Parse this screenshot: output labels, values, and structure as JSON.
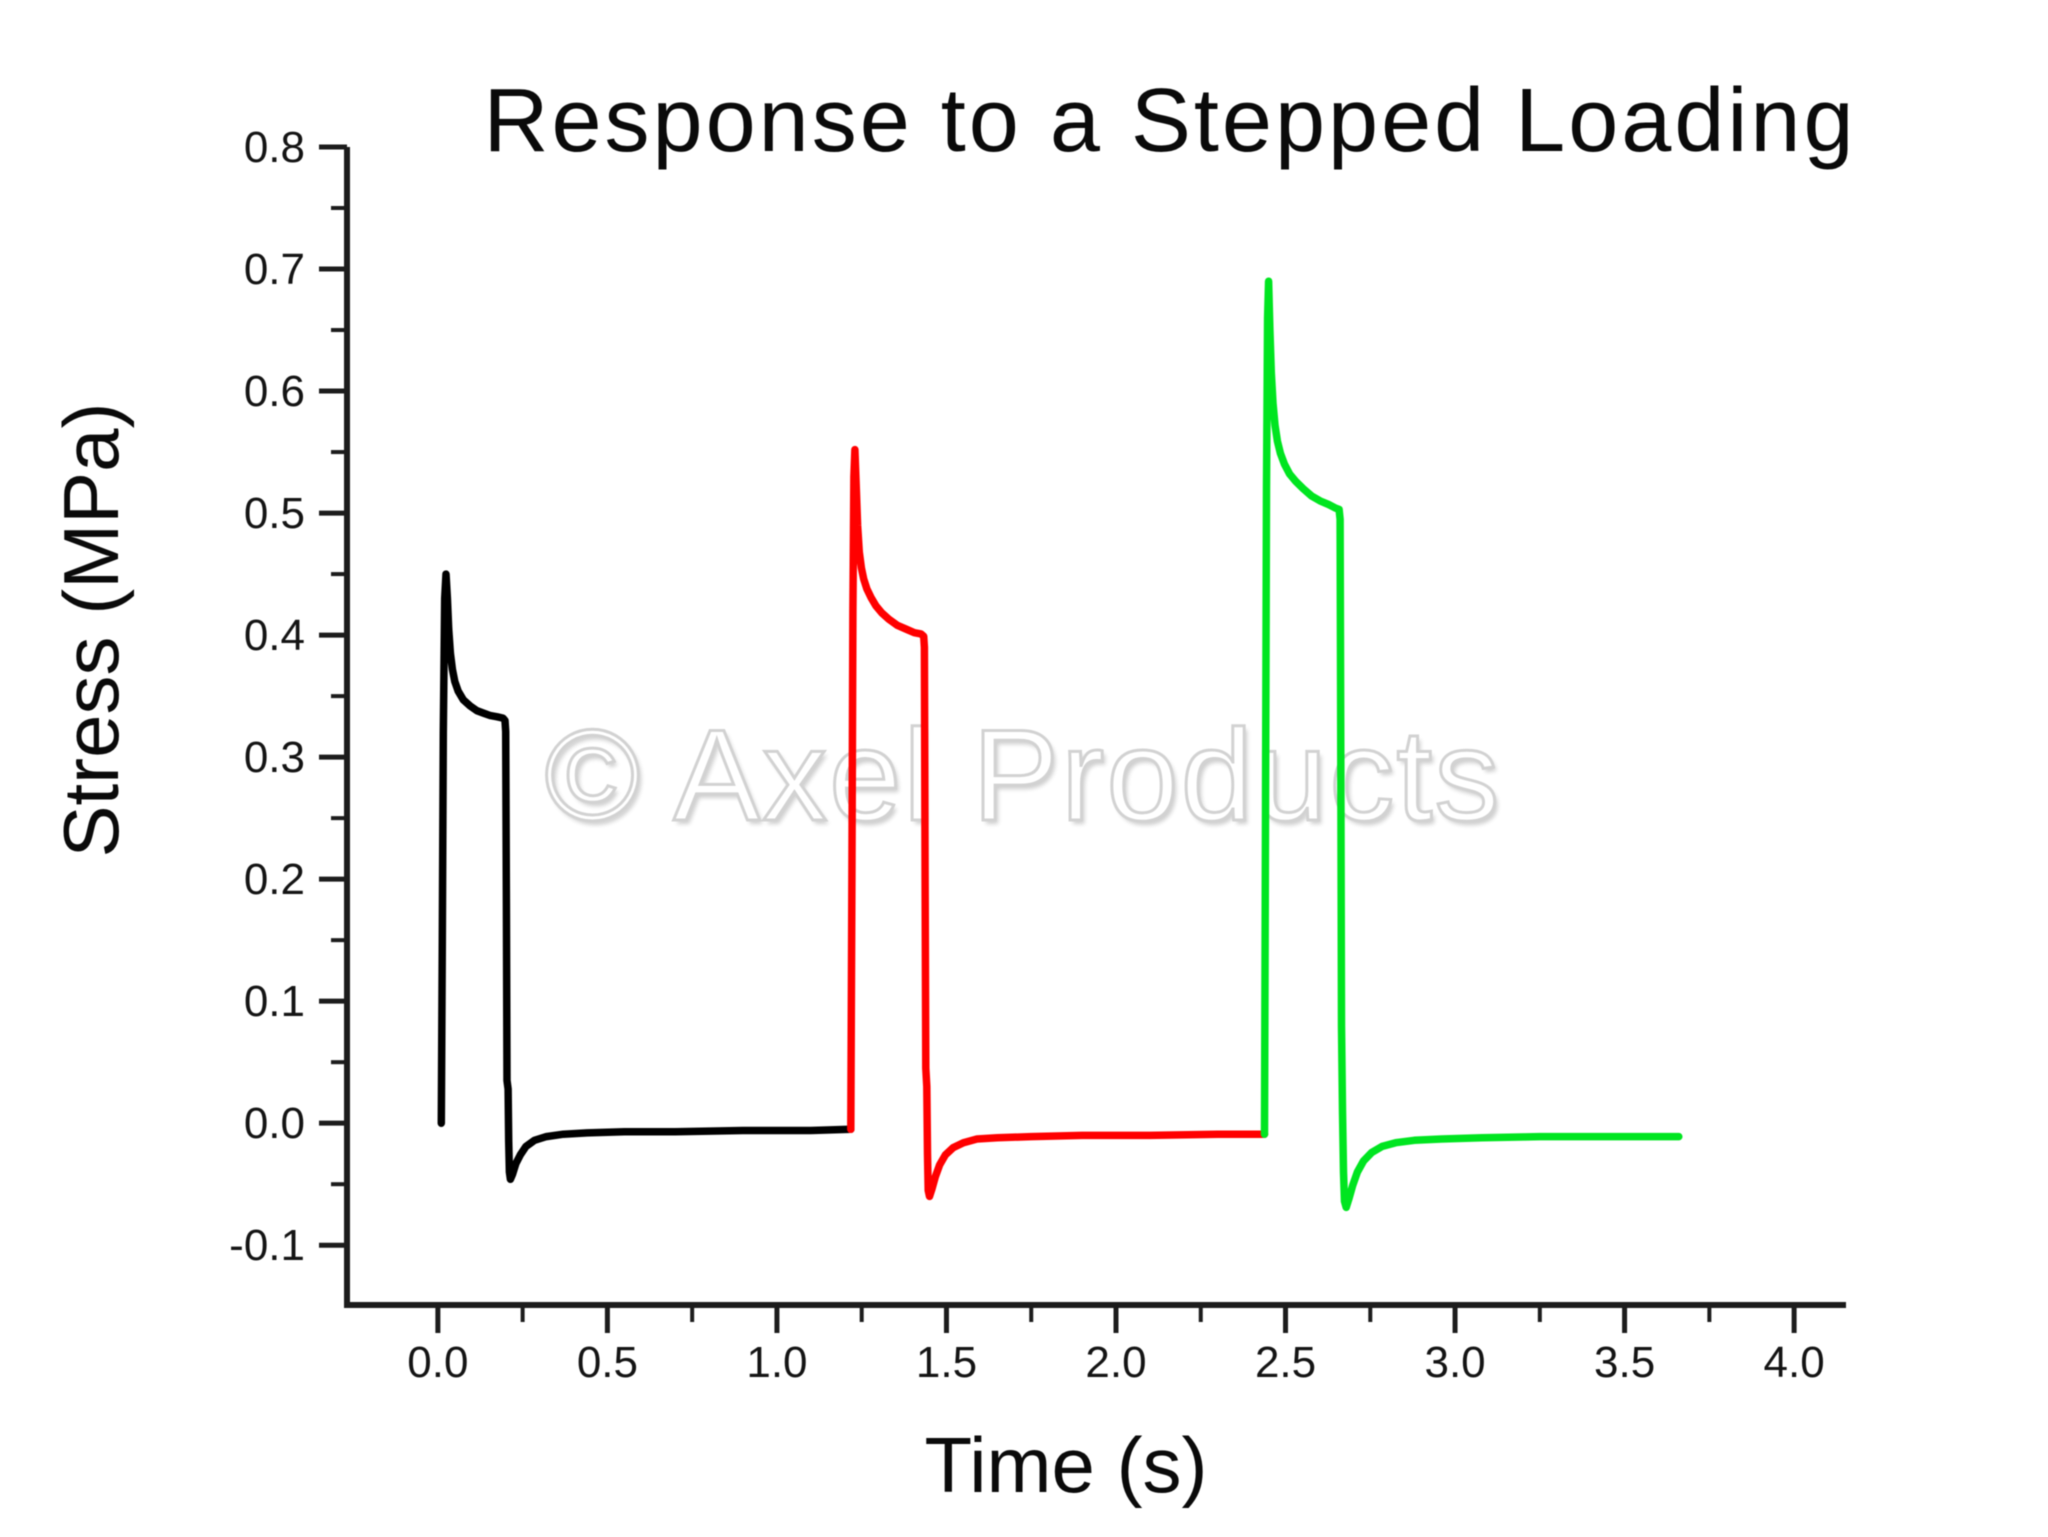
{
  "page": {
    "background": "#ffffff"
  },
  "watermark": {
    "text": "© Axel Products",
    "color": "#d2d2d2"
  },
  "chart_data": {
    "type": "line",
    "title": "Response to a Stepped Loading",
    "xlabel": "Time (s)",
    "ylabel": "Stress (MPa)",
    "xlim": [
      -0.268,
      4.153
    ],
    "ylim": [
      -0.149,
      0.8
    ],
    "grid": false,
    "legend": "none",
    "axis_color": "#1c1c1c",
    "x_ticks": {
      "major": [
        {
          "value": 0.0,
          "label": "0.0"
        },
        {
          "value": 0.5,
          "label": "0.5"
        },
        {
          "value": 1.0,
          "label": "1.0"
        },
        {
          "value": 1.5,
          "label": "1.5"
        },
        {
          "value": 2.0,
          "label": "2.0"
        },
        {
          "value": 2.5,
          "label": "2.5"
        },
        {
          "value": 3.0,
          "label": "3.0"
        },
        {
          "value": 3.5,
          "label": "3.5"
        },
        {
          "value": 4.0,
          "label": "4.0"
        }
      ],
      "minor_values": [
        0.25,
        0.75,
        1.25,
        1.75,
        2.25,
        2.75,
        3.25,
        3.75
      ]
    },
    "y_ticks": {
      "major": [
        {
          "value": 0.8,
          "label": "0.8"
        },
        {
          "value": 0.7,
          "label": "0.7"
        },
        {
          "value": 0.6,
          "label": "0.6"
        },
        {
          "value": 0.5,
          "label": "0.5"
        },
        {
          "value": 0.4,
          "label": "0.4"
        },
        {
          "value": 0.3,
          "label": "0.3"
        },
        {
          "value": 0.2,
          "label": "0.2"
        },
        {
          "value": 0.1,
          "label": "0.1"
        },
        {
          "value": 0.0,
          "label": "0.0"
        },
        {
          "value": -0.1,
          "label": "-0.1"
        }
      ],
      "minor_values": [
        0.75,
        0.65,
        0.55,
        0.45,
        0.35,
        0.25,
        0.15,
        0.05,
        -0.05
      ]
    },
    "series": [
      {
        "name": "pulse-1-black",
        "color": "#000000",
        "peak": 0.45,
        "settle": 0.33,
        "undershoot": -0.046,
        "points": [
          [
            0.01,
            0.0
          ],
          [
            0.013,
            0.15
          ],
          [
            0.016,
            0.32
          ],
          [
            0.02,
            0.43
          ],
          [
            0.024,
            0.45
          ],
          [
            0.028,
            0.43
          ],
          [
            0.032,
            0.405
          ],
          [
            0.037,
            0.385
          ],
          [
            0.043,
            0.372
          ],
          [
            0.05,
            0.362
          ],
          [
            0.06,
            0.354
          ],
          [
            0.075,
            0.347
          ],
          [
            0.095,
            0.342
          ],
          [
            0.115,
            0.338
          ],
          [
            0.135,
            0.336
          ],
          [
            0.155,
            0.334
          ],
          [
            0.175,
            0.333
          ],
          [
            0.192,
            0.332
          ],
          [
            0.198,
            0.33
          ],
          [
            0.2,
            0.321
          ],
          [
            0.202,
            0.18
          ],
          [
            0.204,
            0.035
          ],
          [
            0.207,
            0.028
          ],
          [
            0.209,
            -0.015
          ],
          [
            0.211,
            -0.04
          ],
          [
            0.214,
            -0.046
          ],
          [
            0.22,
            -0.042
          ],
          [
            0.23,
            -0.033
          ],
          [
            0.243,
            -0.026
          ],
          [
            0.26,
            -0.019
          ],
          [
            0.285,
            -0.014
          ],
          [
            0.32,
            -0.011
          ],
          [
            0.37,
            -0.009
          ],
          [
            0.44,
            -0.008
          ],
          [
            0.55,
            -0.007
          ],
          [
            0.7,
            -0.007
          ],
          [
            0.9,
            -0.006
          ],
          [
            1.1,
            -0.006
          ],
          [
            1.218,
            -0.005
          ]
        ]
      },
      {
        "name": "pulse-2-red",
        "color": "#ff0000",
        "peak": 0.55,
        "settle": 0.4,
        "undershoot": -0.06,
        "points": [
          [
            1.218,
            -0.005
          ],
          [
            1.221,
            0.2
          ],
          [
            1.224,
            0.42
          ],
          [
            1.227,
            0.53
          ],
          [
            1.23,
            0.552
          ],
          [
            1.234,
            0.52
          ],
          [
            1.238,
            0.49
          ],
          [
            1.243,
            0.468
          ],
          [
            1.249,
            0.455
          ],
          [
            1.256,
            0.446
          ],
          [
            1.265,
            0.438
          ],
          [
            1.277,
            0.431
          ],
          [
            1.292,
            0.424
          ],
          [
            1.31,
            0.418
          ],
          [
            1.33,
            0.413
          ],
          [
            1.355,
            0.408
          ],
          [
            1.38,
            0.405
          ],
          [
            1.405,
            0.402
          ],
          [
            1.425,
            0.401
          ],
          [
            1.433,
            0.399
          ],
          [
            1.435,
            0.39
          ],
          [
            1.437,
            0.2
          ],
          [
            1.439,
            0.045
          ],
          [
            1.442,
            0.03
          ],
          [
            1.444,
            -0.025
          ],
          [
            1.446,
            -0.055
          ],
          [
            1.45,
            -0.06
          ],
          [
            1.457,
            -0.054
          ],
          [
            1.467,
            -0.044
          ],
          [
            1.48,
            -0.034
          ],
          [
            1.497,
            -0.026
          ],
          [
            1.52,
            -0.02
          ],
          [
            1.55,
            -0.016
          ],
          [
            1.59,
            -0.013
          ],
          [
            1.65,
            -0.012
          ],
          [
            1.75,
            -0.011
          ],
          [
            1.9,
            -0.01
          ],
          [
            2.1,
            -0.01
          ],
          [
            2.3,
            -0.009
          ],
          [
            2.438,
            -0.009
          ]
        ]
      },
      {
        "name": "pulse-3-green",
        "color": "#00e520",
        "peak": 0.69,
        "settle": 0.5,
        "undershoot": -0.069,
        "points": [
          [
            2.438,
            -0.009
          ],
          [
            2.441,
            0.25
          ],
          [
            2.444,
            0.52
          ],
          [
            2.447,
            0.66
          ],
          [
            2.45,
            0.69
          ],
          [
            2.454,
            0.65
          ],
          [
            2.458,
            0.615
          ],
          [
            2.463,
            0.59
          ],
          [
            2.469,
            0.572
          ],
          [
            2.476,
            0.559
          ],
          [
            2.485,
            0.549
          ],
          [
            2.497,
            0.54
          ],
          [
            2.512,
            0.532
          ],
          [
            2.53,
            0.526
          ],
          [
            2.552,
            0.52
          ],
          [
            2.577,
            0.514
          ],
          [
            2.602,
            0.51
          ],
          [
            2.627,
            0.507
          ],
          [
            2.648,
            0.504
          ],
          [
            2.658,
            0.503
          ],
          [
            2.661,
            0.495
          ],
          [
            2.663,
            0.3
          ],
          [
            2.665,
            0.08
          ],
          [
            2.668,
            0.01
          ],
          [
            2.671,
            -0.04
          ],
          [
            2.674,
            -0.064
          ],
          [
            2.679,
            -0.069
          ],
          [
            2.687,
            -0.062
          ],
          [
            2.698,
            -0.051
          ],
          [
            2.712,
            -0.04
          ],
          [
            2.73,
            -0.031
          ],
          [
            2.754,
            -0.024
          ],
          [
            2.785,
            -0.019
          ],
          [
            2.825,
            -0.016
          ],
          [
            2.88,
            -0.014
          ],
          [
            2.96,
            -0.013
          ],
          [
            3.08,
            -0.012
          ],
          [
            3.25,
            -0.011
          ],
          [
            3.45,
            -0.011
          ],
          [
            3.66,
            -0.011
          ]
        ]
      }
    ]
  }
}
